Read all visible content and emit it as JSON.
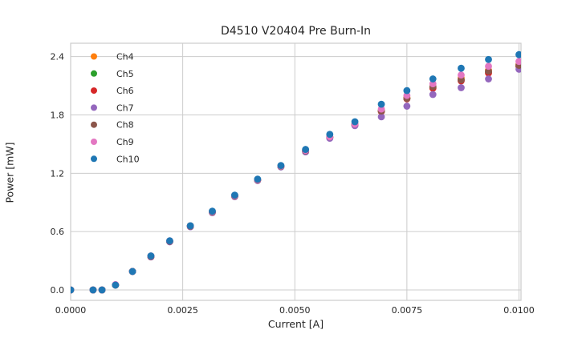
{
  "figure": {
    "title": "D4510 V20404 Pre Burn-In",
    "xlabel": "Current [A]",
    "ylabel": "Power [mW]"
  },
  "colors": {
    "background": "#ffffff",
    "grid": "#cccccc",
    "spine": "#cccccc",
    "text": "#262626"
  },
  "chart_data": {
    "type": "scatter",
    "title": "D4510 V20404 Pre Burn-In",
    "xlabel": "Current [A]",
    "ylabel": "Power [mW]",
    "grid": true,
    "legend_position": "upper-left",
    "xlim": [
      0,
      0.010045
    ],
    "ylim": [
      -0.107,
      2.537
    ],
    "xticks": {
      "values": [
        0,
        0.0025,
        0.005,
        0.0075,
        0.01
      ],
      "labels": [
        "0.0000",
        "0.0025",
        "0.0050",
        "0.0075",
        "0.0100"
      ]
    },
    "yticks": {
      "values": [
        0,
        0.6,
        1.2,
        1.8,
        2.4
      ],
      "labels": [
        "0.0",
        "0.6",
        "1.2",
        "1.8",
        "2.4"
      ]
    },
    "x": [
      0.0,
      0.0005,
      0.0007,
      0.001,
      0.00138,
      0.00179,
      0.00221,
      0.00267,
      0.00316,
      0.00366,
      0.00417,
      0.00469,
      0.00524,
      0.00578,
      0.00634,
      0.00693,
      0.0075,
      0.00808,
      0.00871,
      0.00932,
      0.01
    ],
    "series": [
      {
        "name": "Ch4",
        "color": "#ff7f0e",
        "y": [
          0.0,
          0.0,
          0.0,
          0.05,
          0.19,
          0.345,
          0.5,
          0.655,
          0.8,
          0.965,
          1.13,
          1.27,
          1.43,
          1.57,
          1.7,
          1.84,
          1.98,
          2.09,
          2.18,
          2.26,
          2.32
        ]
      },
      {
        "name": "Ch5",
        "color": "#2ca02c",
        "y": [
          0.0,
          0.0,
          0.0,
          0.05,
          0.19,
          0.345,
          0.5,
          0.66,
          0.805,
          0.97,
          1.135,
          1.275,
          1.43,
          1.57,
          1.7,
          1.84,
          1.97,
          2.08,
          2.16,
          2.24,
          2.3
        ]
      },
      {
        "name": "Ch6",
        "color": "#d62728",
        "y": [
          0.0,
          0.0,
          0.0,
          0.05,
          0.19,
          0.34,
          0.5,
          0.655,
          0.8,
          0.965,
          1.13,
          1.27,
          1.425,
          1.565,
          1.695,
          1.835,
          1.965,
          2.075,
          2.15,
          2.23,
          2.3
        ]
      },
      {
        "name": "Ch7",
        "color": "#9467bd",
        "y": [
          0.0,
          0.0,
          0.0,
          0.05,
          0.19,
          0.34,
          0.495,
          0.65,
          0.795,
          0.96,
          1.125,
          1.265,
          1.42,
          1.56,
          1.69,
          1.78,
          1.89,
          2.01,
          2.08,
          2.17,
          2.27
        ]
      },
      {
        "name": "Ch8",
        "color": "#8c564b",
        "y": [
          0.0,
          0.0,
          0.0,
          0.05,
          0.19,
          0.345,
          0.5,
          0.655,
          0.8,
          0.965,
          1.13,
          1.27,
          1.43,
          1.575,
          1.705,
          1.84,
          1.97,
          2.09,
          2.16,
          2.25,
          2.31
        ]
      },
      {
        "name": "Ch9",
        "color": "#e377c2",
        "y": [
          0.0,
          0.0,
          0.0,
          0.055,
          0.19,
          0.35,
          0.505,
          0.66,
          0.805,
          0.97,
          1.135,
          1.275,
          1.435,
          1.575,
          1.705,
          1.86,
          2.0,
          2.12,
          2.21,
          2.3,
          2.35
        ]
      },
      {
        "name": "Ch10",
        "color": "#1f77b4",
        "y": [
          0.0,
          0.0,
          0.0,
          0.05,
          0.19,
          0.35,
          0.505,
          0.66,
          0.81,
          0.975,
          1.14,
          1.28,
          1.445,
          1.6,
          1.73,
          1.91,
          2.05,
          2.17,
          2.28,
          2.37,
          2.42
        ]
      }
    ]
  }
}
